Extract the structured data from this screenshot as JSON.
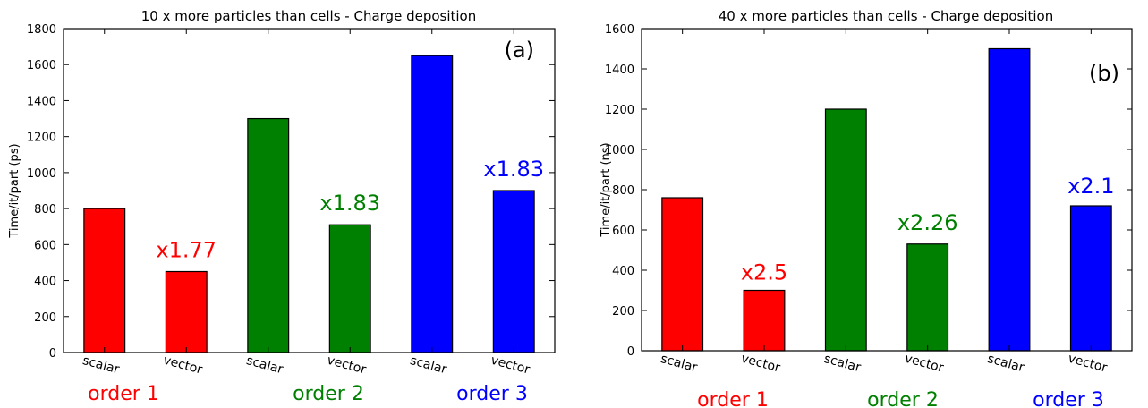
{
  "chart_data": [
    {
      "type": "bar",
      "title": "10 x more particles than cells - Charge deposition",
      "ylabel": "Time/it/part (ps)",
      "panel_label": "(a)",
      "ylim": [
        0,
        1800
      ],
      "yticks": [
        0,
        200,
        400,
        600,
        800,
        1000,
        1200,
        1400,
        1600,
        1800
      ],
      "categories": [
        "scalar",
        "vector",
        "scalar",
        "vector",
        "scalar",
        "vector"
      ],
      "values": [
        800,
        450,
        1300,
        710,
        1650,
        900
      ],
      "bar_colors": [
        "#ff0000",
        "#ff0000",
        "#008000",
        "#008000",
        "#0000ff",
        "#0000ff"
      ],
      "speedups": [
        {
          "bar": 1,
          "text": "x1.77",
          "color": "#ff0000"
        },
        {
          "bar": 3,
          "text": "x1.83",
          "color": "#008000"
        },
        {
          "bar": 5,
          "text": "x1.83",
          "color": "#0000ff"
        }
      ],
      "groups": [
        {
          "label": "order 1",
          "color": "#ff0000"
        },
        {
          "label": "order 2",
          "color": "#008000"
        },
        {
          "label": "order 3",
          "color": "#0000ff"
        }
      ],
      "grid": false
    },
    {
      "type": "bar",
      "title": "40 x more particles than cells - Charge deposition",
      "ylabel": "Time/it/part (ns)",
      "panel_label": "(b)",
      "ylim": [
        0,
        1600
      ],
      "yticks": [
        0,
        200,
        400,
        600,
        800,
        1000,
        1200,
        1400,
        1600
      ],
      "categories": [
        "scalar",
        "vector",
        "scalar",
        "vector",
        "scalar",
        "vector"
      ],
      "values": [
        760,
        300,
        1200,
        530,
        1500,
        720
      ],
      "bar_colors": [
        "#ff0000",
        "#ff0000",
        "#008000",
        "#008000",
        "#0000ff",
        "#0000ff"
      ],
      "speedups": [
        {
          "bar": 1,
          "text": "x2.5",
          "color": "#ff0000"
        },
        {
          "bar": 3,
          "text": "x2.26",
          "color": "#008000"
        },
        {
          "bar": 5,
          "text": "x2.1",
          "color": "#0000ff"
        }
      ],
      "groups": [
        {
          "label": "order 1",
          "color": "#ff0000"
        },
        {
          "label": "order 2",
          "color": "#008000"
        },
        {
          "label": "order 3",
          "color": "#0000ff"
        }
      ],
      "grid": false
    }
  ]
}
